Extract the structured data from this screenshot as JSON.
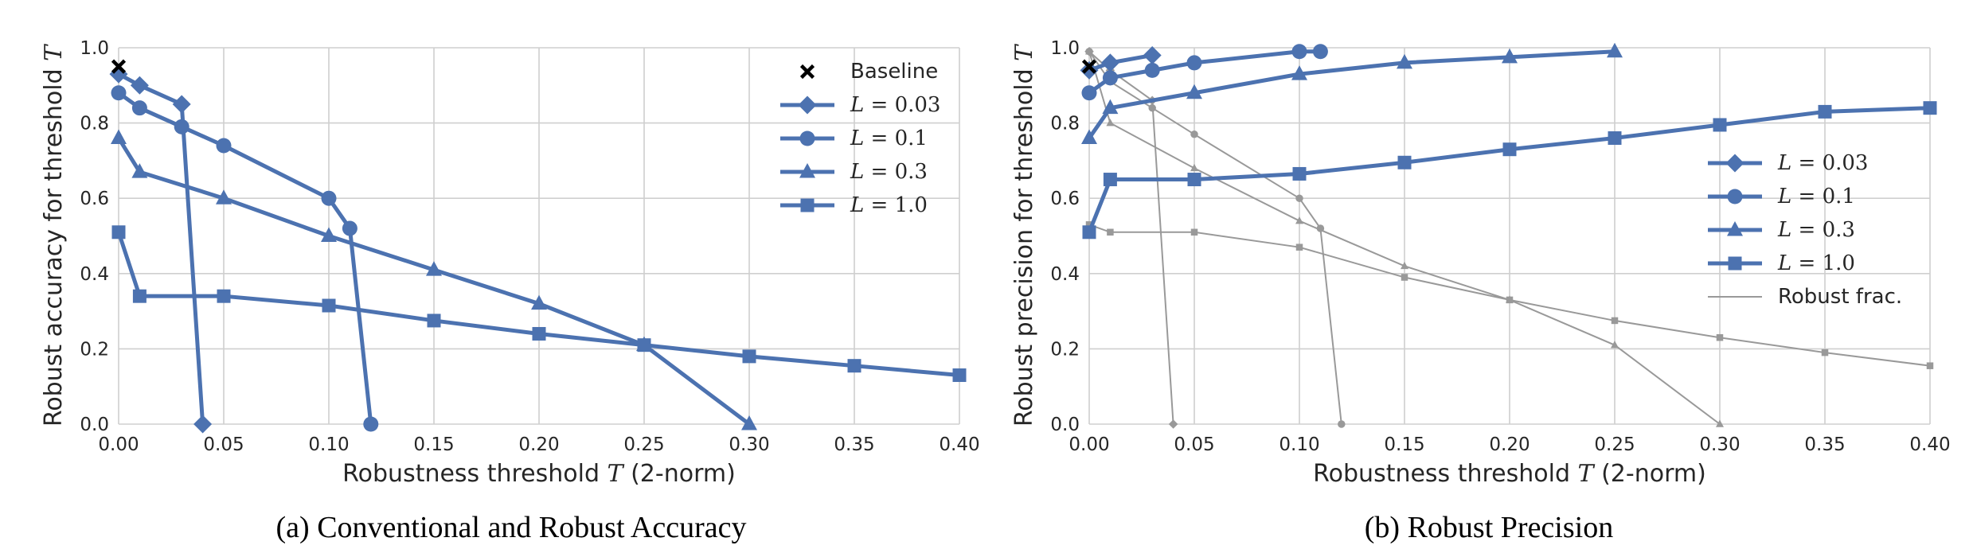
{
  "colors": {
    "series": "#4c72b0",
    "robust_frac": "#999999",
    "grid": "#cfcfcf",
    "text": "#262626"
  },
  "chart_data": [
    {
      "type": "line",
      "caption": "(a)  Conventional and Robust Accuracy",
      "xlabel_text": "Robustness threshold ",
      "xlabel_math": "T",
      "xlabel_suffix": " (2-norm)",
      "ylabel_text": "Robust accuracy for threshold ",
      "ylabel_math": "T",
      "xlim": [
        0,
        0.4
      ],
      "ylim": [
        0,
        1.0
      ],
      "xticks": [
        "0.00",
        "0.05",
        "0.10",
        "0.15",
        "0.20",
        "0.25",
        "0.30",
        "0.35",
        "0.40"
      ],
      "yticks": [
        "0.0",
        "0.2",
        "0.4",
        "0.6",
        "0.8",
        "1.0"
      ],
      "grid": true,
      "legend_position": "top-right",
      "legend": [
        {
          "label": "Baseline",
          "marker": "x",
          "style": "baseline"
        },
        {
          "label": "L = 0.03",
          "marker": "diamond",
          "style": "series"
        },
        {
          "label": "L = 0.1",
          "marker": "circle",
          "style": "series"
        },
        {
          "label": "L = 0.3",
          "marker": "triangle",
          "style": "series"
        },
        {
          "label": "L = 1.0",
          "marker": "square",
          "style": "series"
        }
      ],
      "baseline": {
        "x": 0,
        "y": 0.95
      },
      "series": [
        {
          "name": "L = 0.03",
          "marker": "diamond",
          "x": [
            0,
            0.01,
            0.03,
            0.04
          ],
          "y": [
            0.93,
            0.9,
            0.85,
            0.0
          ]
        },
        {
          "name": "L = 0.1",
          "marker": "circle",
          "x": [
            0,
            0.01,
            0.03,
            0.05,
            0.1,
            0.11,
            0.12
          ],
          "y": [
            0.88,
            0.84,
            0.79,
            0.74,
            0.6,
            0.52,
            0.0
          ]
        },
        {
          "name": "L = 0.3",
          "marker": "triangle",
          "x": [
            0,
            0.01,
            0.05,
            0.1,
            0.15,
            0.2,
            0.25,
            0.3
          ],
          "y": [
            0.76,
            0.67,
            0.6,
            0.5,
            0.41,
            0.32,
            0.21,
            0.0
          ]
        },
        {
          "name": "L = 1.0",
          "marker": "square",
          "x": [
            0,
            0.01,
            0.05,
            0.1,
            0.15,
            0.2,
            0.25,
            0.3,
            0.35,
            0.4
          ],
          "y": [
            0.51,
            0.34,
            0.34,
            0.315,
            0.275,
            0.24,
            0.21,
            0.18,
            0.155,
            0.13
          ]
        }
      ]
    },
    {
      "type": "line",
      "caption": "(b)  Robust Precision",
      "xlabel_text": "Robustness threshold ",
      "xlabel_math": "T",
      "xlabel_suffix": " (2-norm)",
      "ylabel_text": "Robust precision for threshold ",
      "ylabel_math": "T",
      "xlim": [
        0,
        0.4
      ],
      "ylim": [
        0,
        1.0
      ],
      "xticks": [
        "0.00",
        "0.05",
        "0.10",
        "0.15",
        "0.20",
        "0.25",
        "0.30",
        "0.35",
        "0.40"
      ],
      "yticks": [
        "0.0",
        "0.2",
        "0.4",
        "0.6",
        "0.8",
        "1.0"
      ],
      "grid": true,
      "legend_position": "center-right",
      "legend": [
        {
          "label": "L = 0.03",
          "marker": "diamond",
          "style": "series"
        },
        {
          "label": "L = 0.1",
          "marker": "circle",
          "style": "series"
        },
        {
          "label": "L = 0.3",
          "marker": "triangle",
          "style": "series"
        },
        {
          "label": "L = 1.0",
          "marker": "square",
          "style": "series"
        },
        {
          "label": "Robust frac.",
          "marker": "none",
          "style": "thin"
        }
      ],
      "baseline": {
        "x": 0,
        "y": 0.95
      },
      "series": [
        {
          "name": "L = 0.03",
          "marker": "diamond",
          "x": [
            0,
            0.01,
            0.03
          ],
          "y": [
            0.94,
            0.96,
            0.98
          ]
        },
        {
          "name": "L = 0.1",
          "marker": "circle",
          "x": [
            0,
            0.01,
            0.03,
            0.05,
            0.1,
            0.11
          ],
          "y": [
            0.88,
            0.92,
            0.94,
            0.96,
            0.99,
            0.99
          ]
        },
        {
          "name": "L = 0.3",
          "marker": "triangle",
          "x": [
            0,
            0.01,
            0.05,
            0.1,
            0.15,
            0.2,
            0.25
          ],
          "y": [
            0.76,
            0.84,
            0.88,
            0.93,
            0.96,
            0.975,
            0.99
          ]
        },
        {
          "name": "L = 1.0",
          "marker": "square",
          "x": [
            0,
            0.01,
            0.05,
            0.1,
            0.15,
            0.2,
            0.25,
            0.3,
            0.35,
            0.4
          ],
          "y": [
            0.51,
            0.65,
            0.65,
            0.665,
            0.695,
            0.73,
            0.76,
            0.795,
            0.83,
            0.84
          ]
        }
      ],
      "robust_fraction": [
        {
          "marker": "diamond",
          "x": [
            0,
            0.01,
            0.03,
            0.04
          ],
          "y": [
            0.99,
            0.94,
            0.86,
            0.0
          ]
        },
        {
          "marker": "circle",
          "x": [
            0,
            0.01,
            0.03,
            0.05,
            0.1,
            0.11,
            0.12
          ],
          "y": [
            0.99,
            0.91,
            0.84,
            0.77,
            0.6,
            0.52,
            0.0
          ]
        },
        {
          "marker": "triangle",
          "x": [
            0,
            0.01,
            0.05,
            0.1,
            0.15,
            0.2,
            0.25,
            0.3
          ],
          "y": [
            0.99,
            0.8,
            0.68,
            0.54,
            0.42,
            0.33,
            0.21,
            0.0
          ]
        },
        {
          "marker": "square",
          "x": [
            0,
            0.01,
            0.05,
            0.1,
            0.15,
            0.2,
            0.25,
            0.3,
            0.35,
            0.4
          ],
          "y": [
            0.53,
            0.51,
            0.51,
            0.47,
            0.39,
            0.33,
            0.275,
            0.23,
            0.19,
            0.155
          ]
        }
      ]
    }
  ]
}
